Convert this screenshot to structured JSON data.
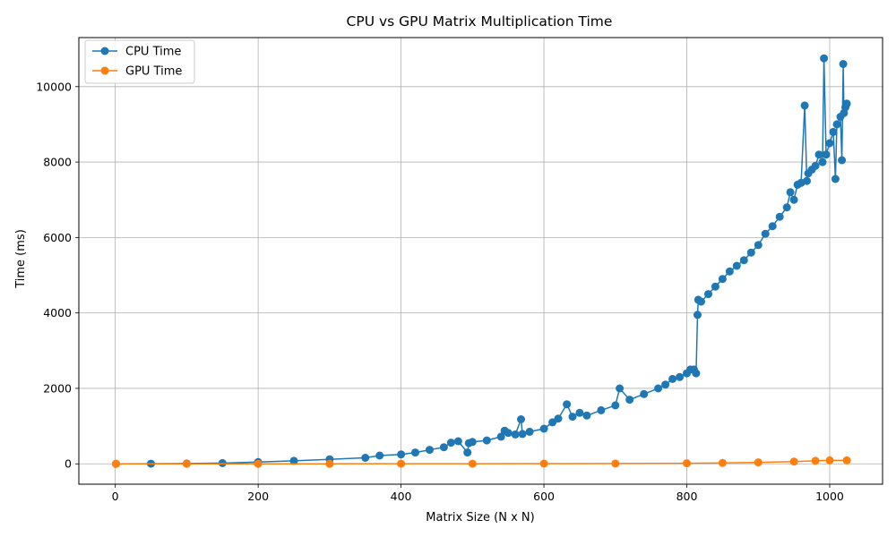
{
  "chart_data": {
    "type": "line",
    "title": "CPU vs GPU Matrix Multiplication Time",
    "xlabel": "Matrix Size (N x N)",
    "ylabel": "Time (ms)",
    "xlim": [
      -51,
      1074
    ],
    "ylim": [
      -540,
      11300
    ],
    "xticks": [
      0,
      200,
      400,
      600,
      800,
      1000
    ],
    "yticks": [
      0,
      2000,
      4000,
      6000,
      8000,
      10000
    ],
    "grid": true,
    "legend": "top-left",
    "series": [
      {
        "name": "CPU Time",
        "color": "#1f77b4",
        "x": [
          1,
          50,
          100,
          150,
          200,
          250,
          300,
          350,
          370,
          400,
          420,
          440,
          460,
          470,
          480,
          493,
          495,
          500,
          520,
          540,
          545,
          550,
          560,
          568,
          570,
          580,
          600,
          612,
          620,
          632,
          640,
          650,
          660,
          680,
          700,
          706,
          720,
          740,
          760,
          770,
          780,
          790,
          800,
          805,
          810,
          813,
          815,
          816,
          820,
          830,
          840,
          850,
          860,
          870,
          880,
          890,
          900,
          910,
          920,
          930,
          940,
          945,
          950,
          955,
          960,
          965,
          968,
          970,
          975,
          980,
          985,
          990,
          992,
          995,
          1000,
          1005,
          1008,
          1010,
          1015,
          1017,
          1019,
          1020,
          1022,
          1024
        ],
        "y": [
          0,
          3,
          8,
          20,
          45,
          80,
          120,
          160,
          220,
          250,
          300,
          370,
          440,
          560,
          600,
          300,
          550,
          580,
          620,
          720,
          880,
          820,
          780,
          1180,
          790,
          850,
          930,
          1100,
          1200,
          1580,
          1250,
          1350,
          1280,
          1420,
          1550,
          2000,
          1700,
          1850,
          2000,
          2100,
          2250,
          2300,
          2400,
          2500,
          2500,
          2400,
          3950,
          4350,
          4300,
          4500,
          4700,
          4900,
          5100,
          5250,
          5400,
          5600,
          5800,
          6100,
          6300,
          6550,
          6800,
          7200,
          7000,
          7400,
          7450,
          9500,
          7500,
          7700,
          7800,
          7900,
          8200,
          8000,
          10750,
          8200,
          8500,
          8800,
          7550,
          9000,
          9200,
          8050,
          10600,
          9300,
          9450,
          9550
        ]
      },
      {
        "name": "GPU Time",
        "color": "#ff7f0e",
        "x": [
          1,
          100,
          200,
          300,
          400,
          500,
          600,
          700,
          800,
          850,
          900,
          950,
          980,
          1000,
          1024
        ],
        "y": [
          0,
          1,
          1,
          2,
          3,
          4,
          5,
          8,
          15,
          25,
          40,
          60,
          80,
          90,
          90
        ]
      }
    ]
  }
}
